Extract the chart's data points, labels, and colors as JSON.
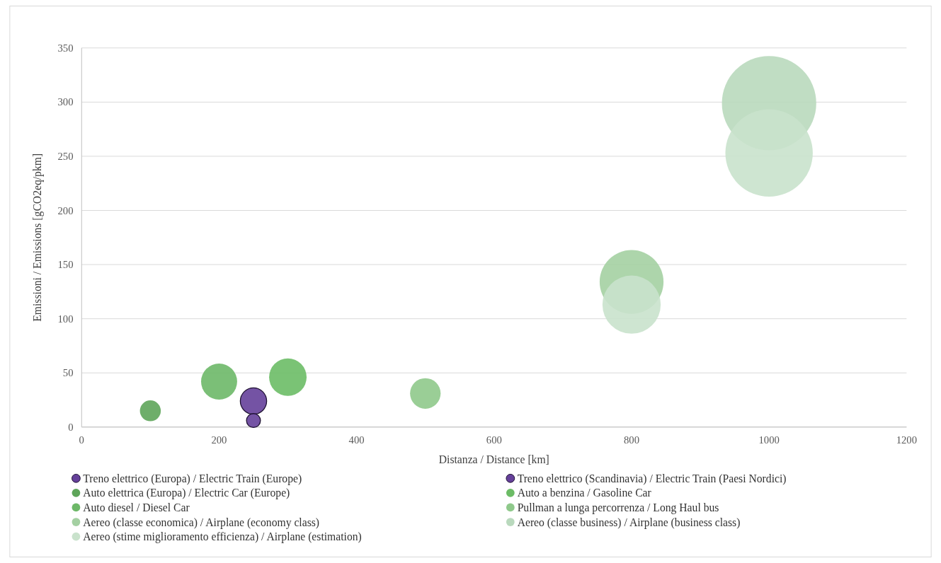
{
  "chart_data": {
    "type": "bubble",
    "xlabel": "Distanza / Distance [km]",
    "ylabel": "Emissioni / Emissions [gCO2eq/pkm]",
    "xlim": [
      0,
      1200
    ],
    "xticks": [
      0,
      200,
      400,
      600,
      800,
      1000,
      1200
    ],
    "ylim": [
      0,
      350
    ],
    "yticks": [
      0,
      50,
      100,
      150,
      200,
      250,
      300,
      350
    ],
    "grid": "y",
    "legend": "bottom",
    "marker": "circle",
    "series": [
      {
        "name": "Treno elettrico (Europa) / Electric Train (Europe)",
        "color": "#65409a",
        "x": [
          250
        ],
        "values": [
          24
        ],
        "sizes": [
          0.078
        ]
      },
      {
        "name": "Treno elettrico (Scandinavia) / Electric Train (Paesi Nordici)",
        "color": "#65409a",
        "x": [
          250
        ],
        "values": [
          6
        ],
        "sizes": [
          0.022
        ]
      },
      {
        "name": "Auto elettrica (Europa) / Electric Car (Europe)",
        "color": "#5ea55a",
        "x": [
          100
        ],
        "values": [
          15
        ],
        "sizes": [
          0.049
        ]
      },
      {
        "name": "Auto a benzina / Gasoline Car",
        "color": "#6cbc66",
        "x": [
          300
        ],
        "values": [
          46
        ],
        "sizes": [
          0.158
        ]
      },
      {
        "name": "Auto diesel / Diesel Car",
        "color": "#6db868",
        "x": [
          200
        ],
        "values": [
          42
        ],
        "sizes": [
          0.146
        ]
      },
      {
        "name": "Pullman a lunga percorrenza / Long Haul bus",
        "color": "#8fc98b",
        "x": [
          500
        ],
        "values": [
          31
        ],
        "sizes": [
          0.105
        ]
      },
      {
        "name": "Aereo (classe economica) / Airplane (economy class)",
        "color": "#a4d0a2",
        "x": [
          800
        ],
        "values": [
          134
        ],
        "sizes": [
          0.458
        ]
      },
      {
        "name": "Aereo (classe business) / Airplane (business class)",
        "color": "#b9d9bd",
        "x": [
          1000
        ],
        "values": [
          299
        ],
        "sizes": [
          1
        ]
      },
      {
        "name": "Aereo (stime miglioramento efficienza) / Airplane (estimation)",
        "color": "#c9e2cc",
        "x": [
          800,
          1000
        ],
        "values": [
          113,
          253
        ],
        "sizes": [
          0.381,
          0.858
        ]
      }
    ]
  }
}
